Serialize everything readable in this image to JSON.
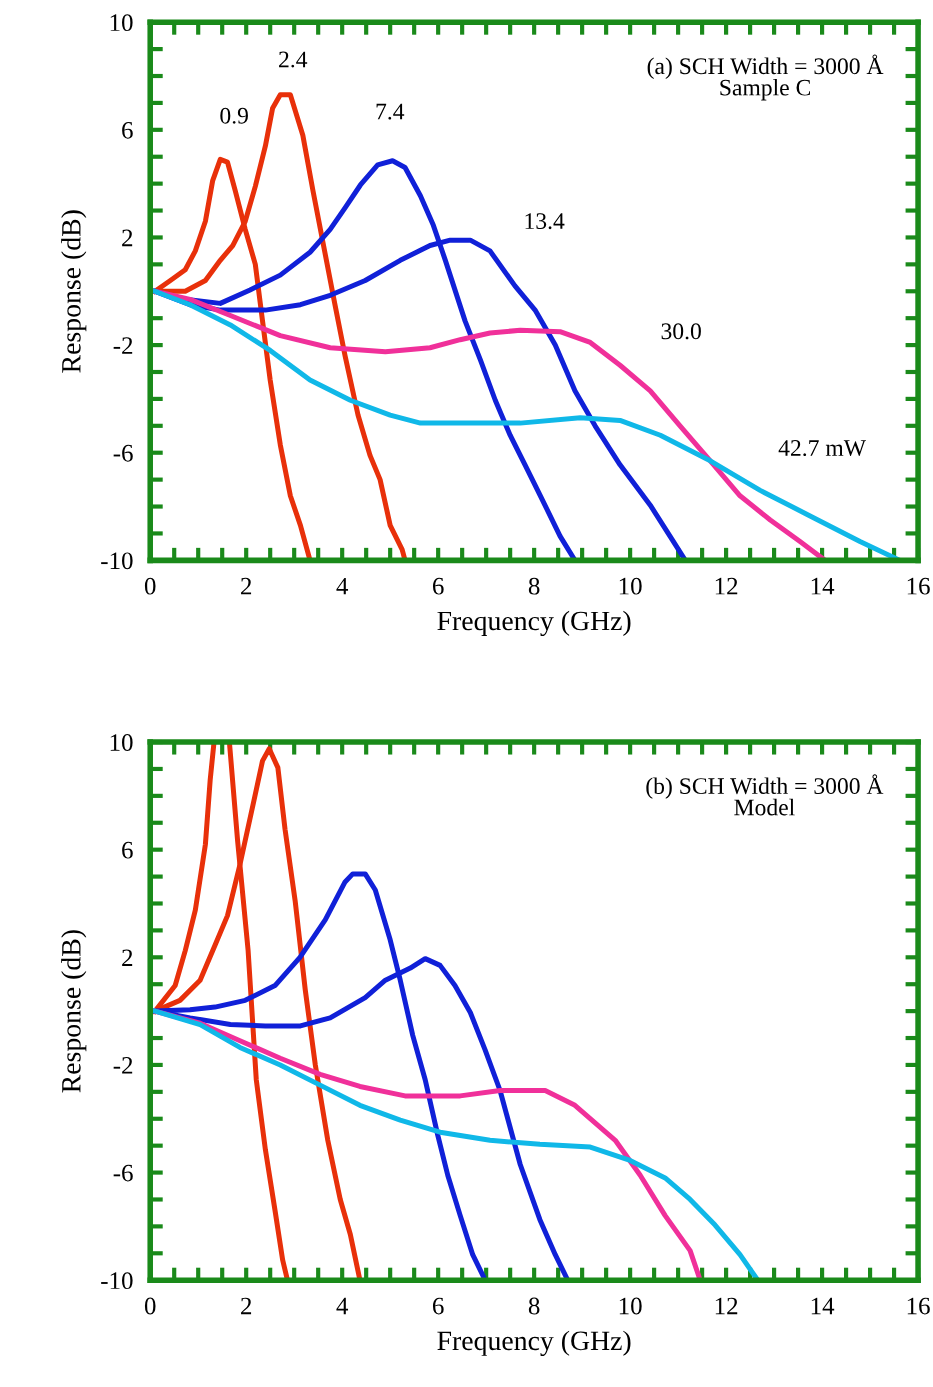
{
  "chart_data": [
    {
      "type": "line",
      "xlabel": "Frequency (GHz)",
      "ylabel": "Response (dB)",
      "xlim": [
        0,
        16
      ],
      "ylim": [
        -10,
        10
      ],
      "xticks": [
        0,
        {
          "value": 0.5,
          "label": null
        },
        {
          "value": 1,
          "label": null
        },
        {
          "value": 1.5,
          "label": null
        },
        2,
        {
          "value": 2.5,
          "label": null
        },
        {
          "value": 3,
          "label": null
        },
        {
          "value": 3.5,
          "label": null
        },
        4,
        {
          "value": 4.5,
          "label": null
        },
        {
          "value": 5,
          "label": null
        },
        {
          "value": 5.5,
          "label": null
        },
        6,
        {
          "value": 6.5,
          "label": null
        },
        {
          "value": 7,
          "label": null
        },
        {
          "value": 7.5,
          "label": null
        },
        8,
        {
          "value": 8.5,
          "label": null
        },
        {
          "value": 9,
          "label": null
        },
        {
          "value": 9.5,
          "label": null
        },
        10,
        {
          "value": 10.5,
          "label": null
        },
        {
          "value": 11,
          "label": null
        },
        {
          "value": 11.5,
          "label": null
        },
        12,
        {
          "value": 12.5,
          "label": null
        },
        {
          "value": 13,
          "label": null
        },
        {
          "value": 13.5,
          "label": null
        },
        14,
        {
          "value": 14.5,
          "label": null
        },
        {
          "value": 15,
          "label": null
        },
        {
          "value": 15.5,
          "label": null
        },
        16
      ],
      "yticks": [
        -10,
        {
          "value": -9,
          "label": null
        },
        {
          "value": -8,
          "label": null
        },
        {
          "value": -7,
          "label": null
        },
        -6,
        {
          "value": -5,
          "label": null
        },
        {
          "value": -4,
          "label": null
        },
        {
          "value": -3,
          "label": null
        },
        -2,
        {
          "value": -1,
          "label": null
        },
        {
          "value": 0,
          "label": null
        },
        {
          "value": 1,
          "label": null
        },
        2,
        {
          "value": 3,
          "label": null
        },
        {
          "value": 4,
          "label": null
        },
        {
          "value": 5,
          "label": null
        },
        6,
        {
          "value": 7,
          "label": null
        },
        {
          "value": 8,
          "label": null
        },
        {
          "value": 9,
          "label": null
        },
        10
      ],
      "grid": false,
      "legend": false,
      "marker": "none",
      "line_style": "solid",
      "series": [
        {
          "color": "#e8300a",
          "x": [
            0.1,
            0.42,
            0.73,
            0.94,
            1.15,
            1.3,
            1.46,
            1.61,
            1.77,
            1.98,
            2.19,
            2.34,
            2.5,
            2.71,
            2.92,
            3.13,
            3.33
          ],
          "values": [
            0,
            0.4,
            0.8,
            1.5,
            2.6,
            4.1,
            4.9,
            4.8,
            3.75,
            2.3,
            1.0,
            -1.1,
            -3.3,
            -5.7,
            -7.6,
            -8.7,
            -10
          ]
        },
        {
          "color": "#e8300a",
          "x": [
            0.1,
            0.73,
            1.15,
            1.46,
            1.72,
            1.98,
            2.19,
            2.4,
            2.55,
            2.71,
            2.92,
            3.18,
            3.39,
            3.65,
            3.85,
            4.06,
            4.33,
            4.58,
            4.79,
            5.0,
            5.25,
            5.31
          ],
          "values": [
            0,
            0,
            0.4,
            1.15,
            1.7,
            2.6,
            3.9,
            5.4,
            6.8,
            7.3,
            7.3,
            5.8,
            3.75,
            1.35,
            -0.5,
            -2.4,
            -4.6,
            -6.1,
            -7.0,
            -8.7,
            -9.6,
            -10
          ]
        },
        {
          "color": "#1020d8",
          "x": [
            0.1,
            0.73,
            1.46,
            2.08,
            2.71,
            3.33,
            3.75,
            4.06,
            4.38,
            4.74,
            5.05,
            5.31,
            5.63,
            5.9,
            6.15,
            6.56,
            6.88,
            7.19,
            7.5,
            7.81,
            8.13,
            8.54,
            8.85
          ],
          "values": [
            0,
            -0.3,
            -0.45,
            0.05,
            0.6,
            1.45,
            2.3,
            3.1,
            3.95,
            4.7,
            4.85,
            4.6,
            3.55,
            2.45,
            1.15,
            -1.1,
            -2.55,
            -4.05,
            -5.35,
            -6.45,
            -7.6,
            -9.1,
            -10
          ]
        },
        {
          "color": "#1020d8",
          "x": [
            0.1,
            0.83,
            1.46,
            2.4,
            3.13,
            3.75,
            4.48,
            5.21,
            5.83,
            6.25,
            6.67,
            7.08,
            7.6,
            8.02,
            8.44,
            8.85,
            9.27,
            9.79,
            10.42,
            10.83,
            11.15
          ],
          "values": [
            0,
            -0.5,
            -0.7,
            -0.7,
            -0.5,
            -0.15,
            0.4,
            1.15,
            1.7,
            1.9,
            1.9,
            1.5,
            0.2,
            -0.7,
            -2.0,
            -3.7,
            -5.0,
            -6.45,
            -7.95,
            -9.1,
            -10
          ]
        },
        {
          "color": "#f0309a",
          "x": [
            0.1,
            0.83,
            1.67,
            2.71,
            3.75,
            4.9,
            5.83,
            6.46,
            7.08,
            7.71,
            8.54,
            9.17,
            9.79,
            10.42,
            11.04,
            11.67,
            12.29,
            12.92,
            13.54,
            14.06
          ],
          "values": [
            0,
            -0.3,
            -0.9,
            -1.65,
            -2.1,
            -2.25,
            -2.1,
            -1.8,
            -1.55,
            -1.45,
            -1.5,
            -1.9,
            -2.75,
            -3.7,
            -5.0,
            -6.3,
            -7.6,
            -8.5,
            -9.3,
            -10
          ]
        },
        {
          "color": "#10b8e8",
          "x": [
            0.1,
            0.83,
            1.67,
            2.5,
            3.33,
            4.17,
            5.0,
            5.63,
            6.67,
            7.71,
            8.96,
            9.79,
            10.63,
            11.67,
            12.71,
            13.75,
            14.79,
            15.62
          ],
          "values": [
            0,
            -0.5,
            -1.25,
            -2.2,
            -3.3,
            -4.05,
            -4.6,
            -4.9,
            -4.9,
            -4.9,
            -4.7,
            -4.8,
            -5.35,
            -6.3,
            -7.4,
            -8.35,
            -9.3,
            -10
          ]
        }
      ],
      "annotations": [
        "(a) SCH Width = 3000 Å\nSample C",
        {
          "text": "0.9",
          "x": 1.46,
          "y": 4.9
        },
        {
          "text": "2.4",
          "x": 2.71,
          "y": 7.3
        },
        {
          "text": "7.4",
          "x": 5.05,
          "y": 4.85
        },
        {
          "text": "13.4",
          "x": 7.08,
          "y": 1.5
        },
        {
          "text": "30.0",
          "x": 9.79,
          "y": -2.75
        },
        "42.7 mW"
      ]
    },
    {
      "type": "line",
      "xlabel": "Frequency (GHz)",
      "ylabel": "Response (dB)",
      "xlim": [
        0,
        16
      ],
      "ylim": [
        -10,
        10
      ],
      "xticks": [
        0,
        {
          "value": 0.5,
          "label": null
        },
        {
          "value": 1,
          "label": null
        },
        {
          "value": 1.5,
          "label": null
        },
        2,
        {
          "value": 2.5,
          "label": null
        },
        {
          "value": 3,
          "label": null
        },
        {
          "value": 3.5,
          "label": null
        },
        4,
        {
          "value": 4.5,
          "label": null
        },
        {
          "value": 5,
          "label": null
        },
        {
          "value": 5.5,
          "label": null
        },
        6,
        {
          "value": 6.5,
          "label": null
        },
        {
          "value": 7,
          "label": null
        },
        {
          "value": 7.5,
          "label": null
        },
        8,
        {
          "value": 8.5,
          "label": null
        },
        {
          "value": 9,
          "label": null
        },
        {
          "value": 9.5,
          "label": null
        },
        10,
        {
          "value": 10.5,
          "label": null
        },
        {
          "value": 11,
          "label": null
        },
        {
          "value": 11.5,
          "label": null
        },
        12,
        {
          "value": 12.5,
          "label": null
        },
        {
          "value": 13,
          "label": null
        },
        {
          "value": 13.5,
          "label": null
        },
        14,
        {
          "value": 14.5,
          "label": null
        },
        {
          "value": 15,
          "label": null
        },
        {
          "value": 15.5,
          "label": null
        },
        16
      ],
      "yticks": [
        -10,
        {
          "value": -9,
          "label": null
        },
        {
          "value": -8,
          "label": null
        },
        {
          "value": -7,
          "label": null
        },
        -6,
        {
          "value": -5,
          "label": null
        },
        {
          "value": -4,
          "label": null
        },
        {
          "value": -3,
          "label": null
        },
        -2,
        {
          "value": -1,
          "label": null
        },
        {
          "value": 0,
          "label": null
        },
        {
          "value": 1,
          "label": null
        },
        2,
        {
          "value": 3,
          "label": null
        },
        {
          "value": 4,
          "label": null
        },
        {
          "value": 5,
          "label": null
        },
        6,
        {
          "value": 7,
          "label": null
        },
        {
          "value": 8,
          "label": null
        },
        {
          "value": 9,
          "label": null
        },
        10
      ],
      "grid": false,
      "legend": false,
      "marker": "none",
      "line_style": "solid",
      "series": [
        {
          "color": "#e8300a",
          "x": [
            0.1,
            0.52,
            0.73,
            0.94,
            1.15,
            1.25,
            1.33,
            1.5,
            1.65,
            1.82,
            2.04,
            2.21,
            2.4,
            2.6,
            2.76,
            2.86
          ],
          "values": [
            0,
            0.95,
            2.25,
            3.75,
            6.2,
            8.6,
            10,
            null,
            10,
            6.35,
            2.25,
            -2.55,
            -5.15,
            -7.4,
            -9.25,
            -10
          ]
        },
        {
          "color": "#e8300a",
          "x": [
            0.1,
            0.62,
            1.04,
            1.35,
            1.61,
            1.87,
            2.14,
            2.34,
            2.48,
            2.66,
            2.81,
            3.02,
            3.23,
            3.44,
            3.7,
            3.96,
            4.17,
            4.37
          ],
          "values": [
            0,
            0.4,
            1.15,
            2.45,
            3.55,
            5.45,
            7.65,
            9.3,
            9.75,
            9.05,
            6.75,
            4.1,
            0.8,
            -2.0,
            -4.8,
            -7.0,
            -8.3,
            -10
          ]
        },
        {
          "color": "#1020d8",
          "x": [
            0.1,
            0.83,
            1.35,
            1.98,
            2.6,
            3.12,
            3.65,
            4.06,
            4.22,
            4.48,
            4.69,
            5.0,
            5.21,
            5.47,
            5.73,
            5.99,
            6.2,
            6.46,
            6.72,
            6.98
          ],
          "values": [
            0,
            0.05,
            0.15,
            0.4,
            0.95,
            2.0,
            3.4,
            4.8,
            5.1,
            5.1,
            4.5,
            2.65,
            1.15,
            -0.9,
            -2.55,
            -4.6,
            -6.1,
            -7.6,
            -9.05,
            -10
          ]
        },
        {
          "color": "#1020d8",
          "x": [
            0.1,
            0.83,
            1.67,
            2.4,
            3.13,
            3.75,
            4.48,
            4.9,
            5.42,
            5.73,
            6.04,
            6.35,
            6.67,
            6.98,
            7.29,
            7.71,
            8.12,
            8.44,
            8.7
          ],
          "values": [
            0,
            -0.25,
            -0.5,
            -0.55,
            -0.55,
            -0.25,
            0.5,
            1.15,
            1.6,
            1.95,
            1.7,
            0.95,
            -0.05,
            -1.45,
            -2.95,
            -5.7,
            -7.75,
            -9.05,
            -10
          ]
        },
        {
          "color": "#f0309a",
          "x": [
            0.1,
            1.04,
            1.87,
            2.71,
            3.54,
            4.37,
            5.31,
            6.46,
            7.29,
            8.23,
            8.85,
            9.69,
            10.21,
            10.73,
            11.25,
            11.46
          ],
          "values": [
            0,
            -0.45,
            -1.1,
            -1.75,
            -2.35,
            -2.8,
            -3.15,
            -3.15,
            -2.95,
            -2.95,
            -3.5,
            -4.8,
            -6.1,
            -7.6,
            -8.9,
            -10
          ]
        },
        {
          "color": "#10b8e8",
          "x": [
            0.1,
            1.04,
            1.87,
            2.71,
            3.54,
            4.37,
            5.21,
            6.04,
            7.08,
            8.12,
            9.17,
            10.0,
            10.73,
            11.25,
            11.77,
            12.29,
            12.66
          ],
          "values": [
            0,
            -0.5,
            -1.35,
            -2.0,
            -2.75,
            -3.5,
            -4.05,
            -4.5,
            -4.8,
            -4.95,
            -5.05,
            -5.55,
            -6.2,
            -7.0,
            -7.95,
            -9.05,
            -10
          ]
        }
      ],
      "annotations": [
        "(b) SCH Width = 3000 Å\nModel"
      ]
    }
  ]
}
